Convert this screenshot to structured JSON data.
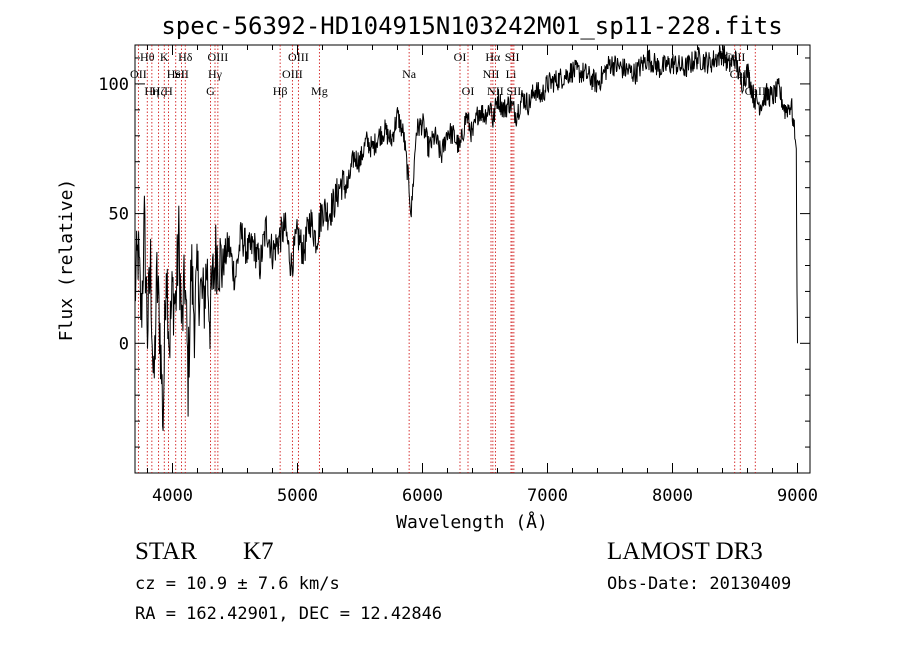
{
  "chart_data": {
    "type": "line",
    "title": "spec-56392-HD104915N103242M01_sp11-228.fits",
    "xlabel": "Wavelength (Å)",
    "ylabel": "Flux (relative)",
    "xlim": [
      3700,
      9100
    ],
    "ylim": [
      -50,
      115
    ],
    "x_ticks": [
      4000,
      5000,
      6000,
      7000,
      8000,
      9000
    ],
    "y_ticks": [
      0,
      50,
      100
    ],
    "grid": false,
    "legend": "none",
    "line_color": "#000000",
    "marker_color": "#cc0000",
    "series": [
      {
        "x": [
          3700,
          3725,
          3750,
          3775,
          3800,
          3825,
          3850,
          3875,
          3900,
          3925,
          3950,
          3975,
          4000,
          4025,
          4050,
          4075,
          4100,
          4125,
          4150,
          4175,
          4200,
          4225,
          4250,
          4275,
          4300,
          4325,
          4350,
          4400,
          4450,
          4500,
          4550,
          4600,
          4650,
          4700,
          4750,
          4800,
          4850,
          4900,
          4950,
          5000,
          5050,
          5100,
          5150,
          5200,
          5250,
          5300,
          5350,
          5400,
          5450,
          5500,
          5550,
          5600,
          5650,
          5700,
          5750,
          5800,
          5850,
          5893,
          5910,
          5950,
          6000,
          6050,
          6100,
          6150,
          6200,
          6250,
          6300,
          6350,
          6400,
          6450,
          6500,
          6550,
          6563,
          6600,
          6650,
          6700,
          6750,
          6800,
          6850,
          6900,
          6950,
          7000,
          7100,
          7200,
          7300,
          7400,
          7500,
          7600,
          7700,
          7800,
          7900,
          8000,
          8100,
          8200,
          8300,
          8400,
          8450,
          8500,
          8550,
          8600,
          8650,
          8700,
          8750,
          8800,
          8850,
          8900,
          8950,
          8990,
          8996,
          9000
        ],
        "y": [
          20,
          35,
          10,
          45,
          5,
          30,
          -20,
          25,
          5,
          -30,
          35,
          0,
          20,
          15,
          40,
          5,
          25,
          -15,
          30,
          10,
          25,
          20,
          15,
          30,
          10,
          25,
          35,
          30,
          38,
          25,
          42,
          35,
          38,
          30,
          45,
          35,
          40,
          45,
          30,
          42,
          35,
          48,
          40,
          52,
          50,
          55,
          62,
          60,
          72,
          70,
          78,
          75,
          80,
          82,
          78,
          88,
          80,
          60,
          50,
          82,
          85,
          75,
          80,
          72,
          82,
          80,
          75,
          88,
          80,
          90,
          88,
          92,
          85,
          95,
          90,
          93,
          88,
          95,
          92,
          98,
          95,
          100,
          102,
          105,
          104,
          100,
          108,
          106,
          104,
          110,
          106,
          108,
          106,
          110,
          108,
          112,
          107,
          110,
          100,
          105,
          95,
          92,
          96,
          95,
          98,
          90,
          92,
          75,
          20,
          0
        ]
      }
    ],
    "line_markers": [
      {
        "wavelength": 3798,
        "label": "Hθ",
        "row": 0
      },
      {
        "wavelength": 3727,
        "label": "OII",
        "row": 1
      },
      {
        "wavelength": 3835,
        "label": "Hη",
        "row": 2
      },
      {
        "wavelength": 3889,
        "label": "Hζ",
        "row": 2
      },
      {
        "wavelength": 3934,
        "label": "K",
        "row": 0
      },
      {
        "wavelength": 3968,
        "label": "H",
        "row": 2
      },
      {
        "wavelength": 4026,
        "label": "HeI",
        "row": 1
      },
      {
        "wavelength": 4072,
        "label": "SII",
        "row": 1
      },
      {
        "wavelength": 4102,
        "label": "Hδ",
        "row": 0
      },
      {
        "wavelength": 4304,
        "label": "G",
        "row": 2
      },
      {
        "wavelength": 4340,
        "label": "Hγ",
        "row": 1
      },
      {
        "wavelength": 4363,
        "label": "OIII",
        "row": 0
      },
      {
        "wavelength": 4861,
        "label": "Hβ",
        "row": 2
      },
      {
        "wavelength": 4959,
        "label": "OIII",
        "row": 1
      },
      {
        "wavelength": 5007,
        "label": "OIII",
        "row": 0
      },
      {
        "wavelength": 5175,
        "label": "Mg",
        "row": 2
      },
      {
        "wavelength": 5893,
        "label": "Na",
        "row": 1
      },
      {
        "wavelength": 6300,
        "label": "OI",
        "row": 0
      },
      {
        "wavelength": 6364,
        "label": "OI",
        "row": 2
      },
      {
        "wavelength": 6548,
        "label": "NII",
        "row": 1
      },
      {
        "wavelength": 6563,
        "label": "Hα",
        "row": 0
      },
      {
        "wavelength": 6583,
        "label": "NII",
        "row": 2
      },
      {
        "wavelength": 6708,
        "label": "Li",
        "row": 1
      },
      {
        "wavelength": 6717,
        "label": "SII",
        "row": 0
      },
      {
        "wavelength": 6731,
        "label": "SII",
        "row": 2
      },
      {
        "wavelength": 8498,
        "label": "CaII",
        "row": 0
      },
      {
        "wavelength": 8542,
        "label": "CaII",
        "row": 1
      },
      {
        "wavelength": 8662,
        "label": "CaII",
        "row": 2
      }
    ]
  },
  "info": {
    "object_class": "STAR",
    "subclass": "K7",
    "survey": "LAMOST DR3",
    "redshift": "cz = 10.9 ± 7.6 km/s",
    "obs_date": "Obs-Date: 20130409",
    "coordinates": "RA = 162.42901, DEC =  12.42846"
  }
}
